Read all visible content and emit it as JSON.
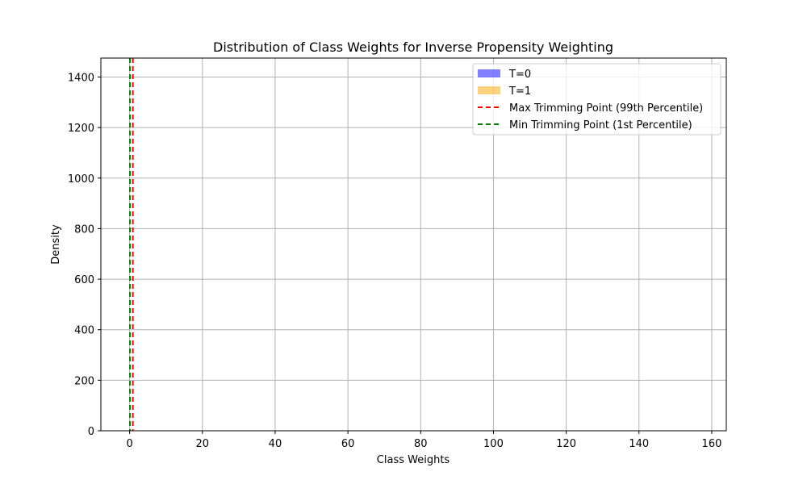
{
  "chart_data": {
    "type": "histogram",
    "title": "Distribution of Class Weights for Inverse Propensity Weighting",
    "xlabel": "Class Weights",
    "ylabel": "Density",
    "xlim": [
      -7.9,
      164.0
    ],
    "ylim": [
      0,
      1475
    ],
    "xticks": [
      0,
      20,
      40,
      60,
      80,
      100,
      120,
      140,
      160
    ],
    "yticks": [
      0,
      200,
      400,
      600,
      800,
      1000,
      1200,
      1400
    ],
    "grid": true,
    "legend_position": "top-right",
    "series": [
      {
        "name": "T=0",
        "kind": "hist",
        "color": "#0000ff",
        "alpha": 0.5,
        "bins": []
      },
      {
        "name": "T=1",
        "kind": "hist",
        "color": "#ffa500",
        "alpha": 0.5,
        "bins": []
      }
    ],
    "vlines": [
      {
        "name": "Max Trimming Point (99th Percentile)",
        "x": 0.9,
        "color": "#ff0000",
        "style": "dashed"
      },
      {
        "name": "Min Trimming Point (1st Percentile)",
        "x": 0.1,
        "color": "#008000",
        "style": "dashed"
      }
    ]
  }
}
